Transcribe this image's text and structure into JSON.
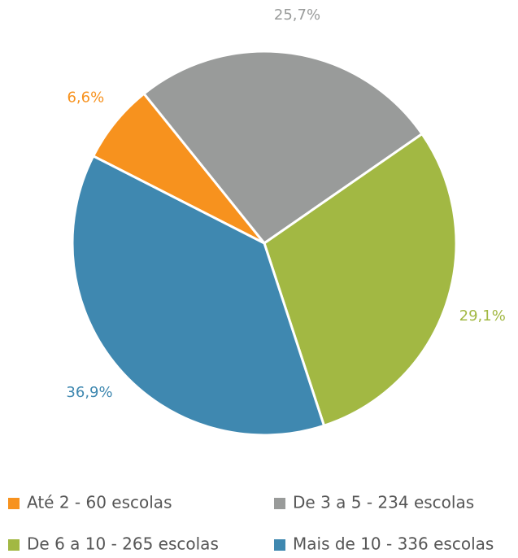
{
  "chart_data": {
    "type": "pie",
    "categories": [
      "Até 2 - 60 escolas",
      "De 3 a 5 - 234 escolas",
      "De 6 a 10 - 265 escolas",
      "Mais de 10 - 336 escolas"
    ],
    "values": [
      6.6,
      25.7,
      29.1,
      36.9
    ],
    "value_labels": [
      "6,6%",
      "25,7%",
      "29,1%",
      "36,9%"
    ],
    "colors": [
      "#f7921e",
      "#999b9a",
      "#a2b843",
      "#3f88b0"
    ]
  }
}
